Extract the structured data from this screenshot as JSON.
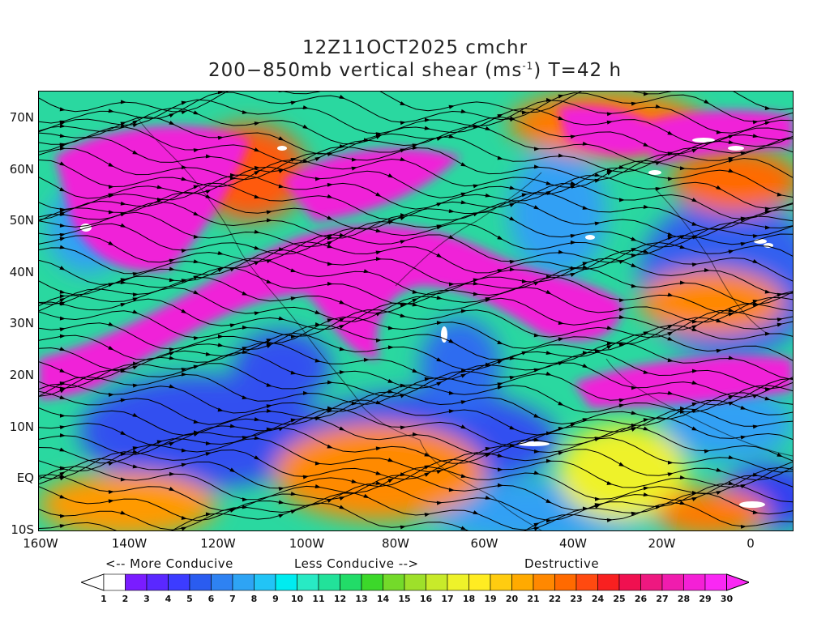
{
  "title": {
    "line1": "12Z11OCT2025 cmchr",
    "line2_pre": "200−850mb vertical shear (ms",
    "line2_sup": "-1",
    "line2_post": ") T=42 h"
  },
  "lat_labels": [
    "70N",
    "60N",
    "50N",
    "40N",
    "30N",
    "20N",
    "10N",
    "EQ",
    "10S"
  ],
  "lon_labels": [
    "160W",
    "140W",
    "120W",
    "100W",
    "80W",
    "60W",
    "40W",
    "20W",
    "0"
  ],
  "legend": {
    "more": "<-- More Conducive",
    "less": "Less Conducive -->",
    "destructive": "Destructive"
  },
  "colorbar": {
    "labels": [
      "1",
      "2",
      "3",
      "4",
      "5",
      "6",
      "7",
      "8",
      "9",
      "10",
      "11",
      "12",
      "13",
      "14",
      "15",
      "16",
      "17",
      "18",
      "19",
      "20",
      "21",
      "22",
      "23",
      "24",
      "25",
      "26",
      "27",
      "28",
      "29",
      "30"
    ],
    "colors": [
      "#ffffff",
      "#7a1cff",
      "#5a28ff",
      "#3c3cff",
      "#2a5cf0",
      "#2e82f2",
      "#2ea4f4",
      "#22c4f6",
      "#00ecf0",
      "#28eac4",
      "#22e29a",
      "#22dc68",
      "#3cd82a",
      "#74da2a",
      "#9ee02a",
      "#c8ea2a",
      "#eef22a",
      "#ffec22",
      "#ffcc10",
      "#ffaa00",
      "#ff8800",
      "#ff6a00",
      "#ff4a10",
      "#f82020",
      "#f01050",
      "#ee1880",
      "#f01cae",
      "#f420d6",
      "#fa28f4"
    ]
  },
  "colors": {
    "strong_shear": "#f01cd6",
    "weak_shear": "#3c3cff"
  }
}
